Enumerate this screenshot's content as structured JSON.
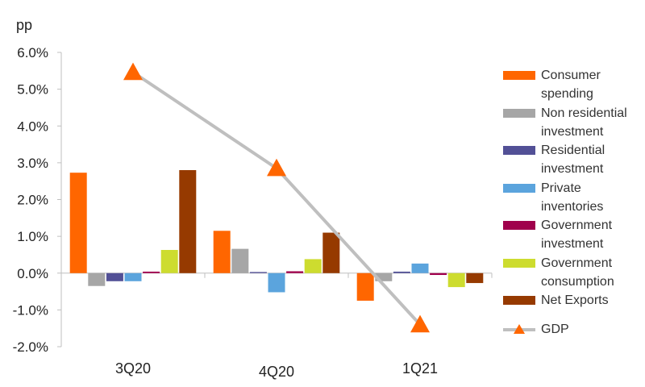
{
  "chart_data": {
    "type": "bar",
    "unit_label": "pp",
    "categories": [
      "3Q20",
      "4Q20",
      "1Q21"
    ],
    "y_ticks": [
      "6.0%",
      "5.0%",
      "4.0%",
      "3.0%",
      "2.0%",
      "1.0%",
      "0.0%",
      "-1.0%",
      "-2.0%"
    ],
    "ylim": [
      -2.0,
      6.0
    ],
    "grid": false,
    "legend_position": "right",
    "series": [
      {
        "name": "Consumer spending",
        "color": "#ff6600",
        "values": [
          2.73,
          1.15,
          -0.75
        ]
      },
      {
        "name": "Non residential investment",
        "color": "#a6a6a6",
        "values": [
          -0.35,
          0.66,
          -0.22
        ]
      },
      {
        "name": "Residential investment",
        "color": "#525096",
        "values": [
          -0.22,
          0.03,
          0.04
        ]
      },
      {
        "name": "Private inventories",
        "color": "#5ba4dd",
        "values": [
          -0.22,
          -0.52,
          0.26
        ]
      },
      {
        "name": "Government investment",
        "color": "#a0004c",
        "values": [
          0.04,
          0.05,
          -0.05
        ]
      },
      {
        "name": "Government consumption",
        "color": "#cddc2f",
        "values": [
          0.63,
          0.38,
          -0.38
        ]
      },
      {
        "name": "Net Exports",
        "color": "#963a00",
        "values": [
          2.8,
          1.1,
          -0.27
        ]
      }
    ],
    "line_series": {
      "name": "GDP",
      "type": "line",
      "color": "#bfbfbf",
      "marker_color": "#ff6600",
      "marker": "triangle",
      "values": [
        5.46,
        2.85,
        -1.4
      ]
    }
  },
  "legend": {
    "labels": [
      [
        "Consumer",
        "spending"
      ],
      [
        "Non residential",
        "investment"
      ],
      [
        "Residential",
        "investment"
      ],
      [
        "Private",
        "inventories"
      ],
      [
        "Government",
        "investment"
      ],
      [
        "Government",
        "consumption"
      ],
      [
        "Net Exports"
      ]
    ],
    "gdp_label": "GDP"
  }
}
